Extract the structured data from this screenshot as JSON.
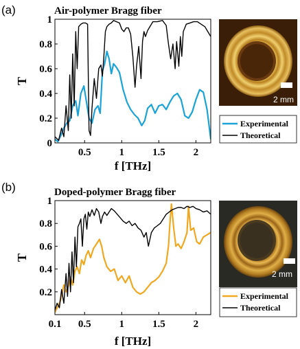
{
  "chart_data": [
    {
      "type": "line",
      "panel_label": "(a)",
      "title": "Air-polymer Bragg fiber",
      "xlabel": "f [THz]",
      "ylabel": "T",
      "xlim": [
        0.1,
        2.2
      ],
      "ylim": [
        0,
        1
      ],
      "xticks": [
        {
          "value": 0.5,
          "label": "0.5"
        },
        {
          "value": 1,
          "label": "1"
        },
        {
          "value": 1.5,
          "label": "1.5"
        },
        {
          "value": 2,
          "label": "2"
        }
      ],
      "yticks": [
        {
          "value": 0,
          "label": "0"
        },
        {
          "value": 0.2,
          "label": "0.2"
        },
        {
          "value": 0.4,
          "label": "0.4"
        },
        {
          "value": 0.6,
          "label": "0.6"
        },
        {
          "value": 0.8,
          "label": "0.8"
        },
        {
          "value": 1,
          "label": "1"
        }
      ],
      "grid": false,
      "legend_position": "below-right",
      "inset": {
        "scale_label": "2 mm"
      },
      "series": [
        {
          "name": "Experimental",
          "color": "#1aa3d8",
          "points": [
            [
              0.1,
              0.03
            ],
            [
              0.14,
              0.01
            ],
            [
              0.18,
              0.06
            ],
            [
              0.22,
              0.12
            ],
            [
              0.26,
              0.16
            ],
            [
              0.3,
              0.18
            ],
            [
              0.34,
              0.3
            ],
            [
              0.38,
              0.34
            ],
            [
              0.41,
              0.22
            ],
            [
              0.45,
              0.4
            ],
            [
              0.49,
              0.46
            ],
            [
              0.52,
              0.35
            ],
            [
              0.56,
              0.2
            ],
            [
              0.6,
              0.16
            ],
            [
              0.64,
              0.27
            ],
            [
              0.68,
              0.3
            ],
            [
              0.71,
              0.24
            ],
            [
              0.74,
              0.58
            ],
            [
              0.77,
              0.64
            ],
            [
              0.8,
              0.74
            ],
            [
              0.83,
              0.68
            ],
            [
              0.86,
              0.56
            ],
            [
              0.89,
              0.64
            ],
            [
              0.93,
              0.61
            ],
            [
              0.97,
              0.57
            ],
            [
              1.02,
              0.43
            ],
            [
              1.07,
              0.33
            ],
            [
              1.12,
              0.27
            ],
            [
              1.17,
              0.23
            ],
            [
              1.22,
              0.2
            ],
            [
              1.27,
              0.14
            ],
            [
              1.31,
              0.18
            ],
            [
              1.35,
              0.28
            ],
            [
              1.4,
              0.31
            ],
            [
              1.45,
              0.24
            ],
            [
              1.5,
              0.3
            ],
            [
              1.55,
              0.31
            ],
            [
              1.6,
              0.27
            ],
            [
              1.65,
              0.33
            ],
            [
              1.7,
              0.38
            ],
            [
              1.75,
              0.4
            ],
            [
              1.8,
              0.35
            ],
            [
              1.85,
              0.22
            ],
            [
              1.9,
              0.2
            ],
            [
              1.95,
              0.25
            ],
            [
              2.0,
              0.35
            ],
            [
              2.05,
              0.43
            ],
            [
              2.1,
              0.41
            ],
            [
              2.15,
              0.27
            ],
            [
              2.2,
              0.03
            ]
          ]
        },
        {
          "name": "Theoretical",
          "color": "#000000",
          "points": [
            [
              0.1,
              0.05
            ],
            [
              0.15,
              0.02
            ],
            [
              0.19,
              0.12
            ],
            [
              0.22,
              0.05
            ],
            [
              0.25,
              0.3
            ],
            [
              0.28,
              0.1
            ],
            [
              0.3,
              0.55
            ],
            [
              0.32,
              0.2
            ],
            [
              0.34,
              0.72
            ],
            [
              0.36,
              0.3
            ],
            [
              0.38,
              0.9
            ],
            [
              0.4,
              0.6
            ],
            [
              0.42,
              0.94
            ],
            [
              0.45,
              0.96
            ],
            [
              0.48,
              0.97
            ],
            [
              0.51,
              0.97
            ],
            [
              0.54,
              0.96
            ],
            [
              0.56,
              0.1
            ],
            [
              0.58,
              0.06
            ],
            [
              0.6,
              0.28
            ],
            [
              0.63,
              0.52
            ],
            [
              0.66,
              0.36
            ],
            [
              0.69,
              0.6
            ],
            [
              0.72,
              0.63
            ],
            [
              0.74,
              0.54
            ],
            [
              0.76,
              0.7
            ],
            [
              0.78,
              0.9
            ],
            [
              0.8,
              0.94
            ],
            [
              0.83,
              0.96
            ],
            [
              0.86,
              0.97
            ],
            [
              0.89,
              0.99
            ],
            [
              0.93,
              0.98
            ],
            [
              0.97,
              0.97
            ],
            [
              1.0,
              0.92
            ],
            [
              1.03,
              0.9
            ],
            [
              1.06,
              0.93
            ],
            [
              1.09,
              0.93
            ],
            [
              1.12,
              0.88
            ],
            [
              1.15,
              0.7
            ],
            [
              1.18,
              0.45
            ],
            [
              1.2,
              0.62
            ],
            [
              1.23,
              0.78
            ],
            [
              1.26,
              0.52
            ],
            [
              1.28,
              0.82
            ],
            [
              1.3,
              0.9
            ],
            [
              1.32,
              0.86
            ],
            [
              1.35,
              0.91
            ],
            [
              1.38,
              0.94
            ],
            [
              1.42,
              0.98
            ],
            [
              1.48,
              0.98
            ],
            [
              1.55,
              0.99
            ],
            [
              1.6,
              0.95
            ],
            [
              1.63,
              0.8
            ],
            [
              1.66,
              0.68
            ],
            [
              1.69,
              0.8
            ],
            [
              1.72,
              0.6
            ],
            [
              1.74,
              0.82
            ],
            [
              1.77,
              0.62
            ],
            [
              1.79,
              0.86
            ],
            [
              1.81,
              0.7
            ],
            [
              1.83,
              0.9
            ],
            [
              1.87,
              0.96
            ],
            [
              1.92,
              0.97
            ],
            [
              1.97,
              0.98
            ],
            [
              2.02,
              0.98
            ],
            [
              2.07,
              0.96
            ],
            [
              2.12,
              0.94
            ],
            [
              2.16,
              0.9
            ],
            [
              2.2,
              0.86
            ]
          ]
        }
      ]
    },
    {
      "type": "line",
      "panel_label": "(b)",
      "title": "Doped-polymer Bragg fiber",
      "xlabel": "f [THz]",
      "ylabel": "T",
      "xlim": [
        0.1,
        2.2
      ],
      "ylim": [
        0,
        1
      ],
      "xticks": [
        {
          "value": 0.1,
          "label": "0.1"
        },
        {
          "value": 0.5,
          "label": "0.5"
        },
        {
          "value": 1,
          "label": "1"
        },
        {
          "value": 1.5,
          "label": "1.5"
        },
        {
          "value": 2,
          "label": "2"
        }
      ],
      "yticks": [
        {
          "value": 0.2,
          "label": "0.2"
        },
        {
          "value": 0.4,
          "label": "0.4"
        },
        {
          "value": 0.6,
          "label": "0.6"
        },
        {
          "value": 0.8,
          "label": "0.8"
        },
        {
          "value": 1,
          "label": "1"
        }
      ],
      "grid": false,
      "legend_position": "below-right",
      "inset": {
        "scale_label": "2 mm"
      },
      "series": [
        {
          "name": "Experimental",
          "color": "#f0a820",
          "points": [
            [
              0.1,
              0.02
            ],
            [
              0.13,
              0.06
            ],
            [
              0.16,
              0.1
            ],
            [
              0.19,
              0.16
            ],
            [
              0.22,
              0.26
            ],
            [
              0.25,
              0.2
            ],
            [
              0.28,
              0.25
            ],
            [
              0.31,
              0.33
            ],
            [
              0.34,
              0.26
            ],
            [
              0.37,
              0.38
            ],
            [
              0.4,
              0.42
            ],
            [
              0.43,
              0.36
            ],
            [
              0.46,
              0.48
            ],
            [
              0.49,
              0.44
            ],
            [
              0.52,
              0.52
            ],
            [
              0.55,
              0.56
            ],
            [
              0.58,
              0.5
            ],
            [
              0.62,
              0.58
            ],
            [
              0.66,
              0.62
            ],
            [
              0.7,
              0.66
            ],
            [
              0.73,
              0.6
            ],
            [
              0.76,
              0.5
            ],
            [
              0.8,
              0.42
            ],
            [
              0.85,
              0.38
            ],
            [
              0.9,
              0.4
            ],
            [
              0.95,
              0.3
            ],
            [
              1.0,
              0.34
            ],
            [
              1.05,
              0.28
            ],
            [
              1.1,
              0.34
            ],
            [
              1.15,
              0.24
            ],
            [
              1.2,
              0.2
            ],
            [
              1.25,
              0.18
            ],
            [
              1.3,
              0.2
            ],
            [
              1.35,
              0.24
            ],
            [
              1.4,
              0.28
            ],
            [
              1.45,
              0.3
            ],
            [
              1.5,
              0.33
            ],
            [
              1.55,
              0.38
            ],
            [
              1.6,
              0.45
            ],
            [
              1.63,
              0.6
            ],
            [
              1.65,
              0.8
            ],
            [
              1.67,
              0.97
            ],
            [
              1.7,
              0.76
            ],
            [
              1.73,
              0.6
            ],
            [
              1.76,
              0.62
            ],
            [
              1.8,
              0.58
            ],
            [
              1.84,
              0.64
            ],
            [
              1.88,
              0.72
            ],
            [
              1.9,
              0.95
            ],
            [
              1.93,
              0.74
            ],
            [
              1.97,
              0.76
            ],
            [
              2.01,
              0.64
            ],
            [
              2.05,
              0.62
            ],
            [
              2.1,
              0.68
            ],
            [
              2.15,
              0.7
            ],
            [
              2.2,
              0.72
            ]
          ]
        },
        {
          "name": "Theoretical",
          "color": "#000000",
          "points": [
            [
              0.1,
              0.04
            ],
            [
              0.13,
              0.1
            ],
            [
              0.16,
              0.06
            ],
            [
              0.19,
              0.22
            ],
            [
              0.22,
              0.1
            ],
            [
              0.25,
              0.36
            ],
            [
              0.27,
              0.16
            ],
            [
              0.29,
              0.45
            ],
            [
              0.31,
              0.2
            ],
            [
              0.33,
              0.55
            ],
            [
              0.35,
              0.28
            ],
            [
              0.37,
              0.68
            ],
            [
              0.39,
              0.42
            ],
            [
              0.41,
              0.77
            ],
            [
              0.43,
              0.8
            ],
            [
              0.45,
              0.84
            ],
            [
              0.47,
              0.6
            ],
            [
              0.49,
              0.84
            ],
            [
              0.51,
              0.88
            ],
            [
              0.53,
              0.75
            ],
            [
              0.55,
              0.9
            ],
            [
              0.57,
              0.86
            ],
            [
              0.6,
              0.92
            ],
            [
              0.63,
              0.87
            ],
            [
              0.66,
              0.93
            ],
            [
              0.69,
              0.9
            ],
            [
              0.72,
              0.8
            ],
            [
              0.74,
              0.86
            ],
            [
              0.77,
              0.9
            ],
            [
              0.8,
              0.87
            ],
            [
              0.83,
              0.9
            ],
            [
              0.86,
              0.93
            ],
            [
              0.9,
              0.91
            ],
            [
              0.94,
              0.88
            ],
            [
              0.98,
              0.85
            ],
            [
              1.02,
              0.82
            ],
            [
              1.06,
              0.8
            ],
            [
              1.1,
              0.82
            ],
            [
              1.14,
              0.78
            ],
            [
              1.18,
              0.8
            ],
            [
              1.22,
              0.76
            ],
            [
              1.26,
              0.74
            ],
            [
              1.3,
              0.68
            ],
            [
              1.33,
              0.72
            ],
            [
              1.36,
              0.6
            ],
            [
              1.4,
              0.72
            ],
            [
              1.44,
              0.76
            ],
            [
              1.48,
              0.78
            ],
            [
              1.52,
              0.8
            ],
            [
              1.56,
              0.84
            ],
            [
              1.6,
              0.88
            ],
            [
              1.64,
              0.9
            ],
            [
              1.68,
              0.92
            ],
            [
              1.72,
              0.93
            ],
            [
              1.76,
              0.94
            ],
            [
              1.8,
              0.94
            ],
            [
              1.84,
              0.93
            ],
            [
              1.88,
              0.95
            ],
            [
              1.92,
              0.94
            ],
            [
              1.96,
              0.95
            ],
            [
              2.0,
              0.93
            ],
            [
              2.05,
              0.92
            ],
            [
              2.1,
              0.9
            ],
            [
              2.15,
              0.91
            ],
            [
              2.2,
              0.88
            ]
          ]
        }
      ]
    }
  ]
}
